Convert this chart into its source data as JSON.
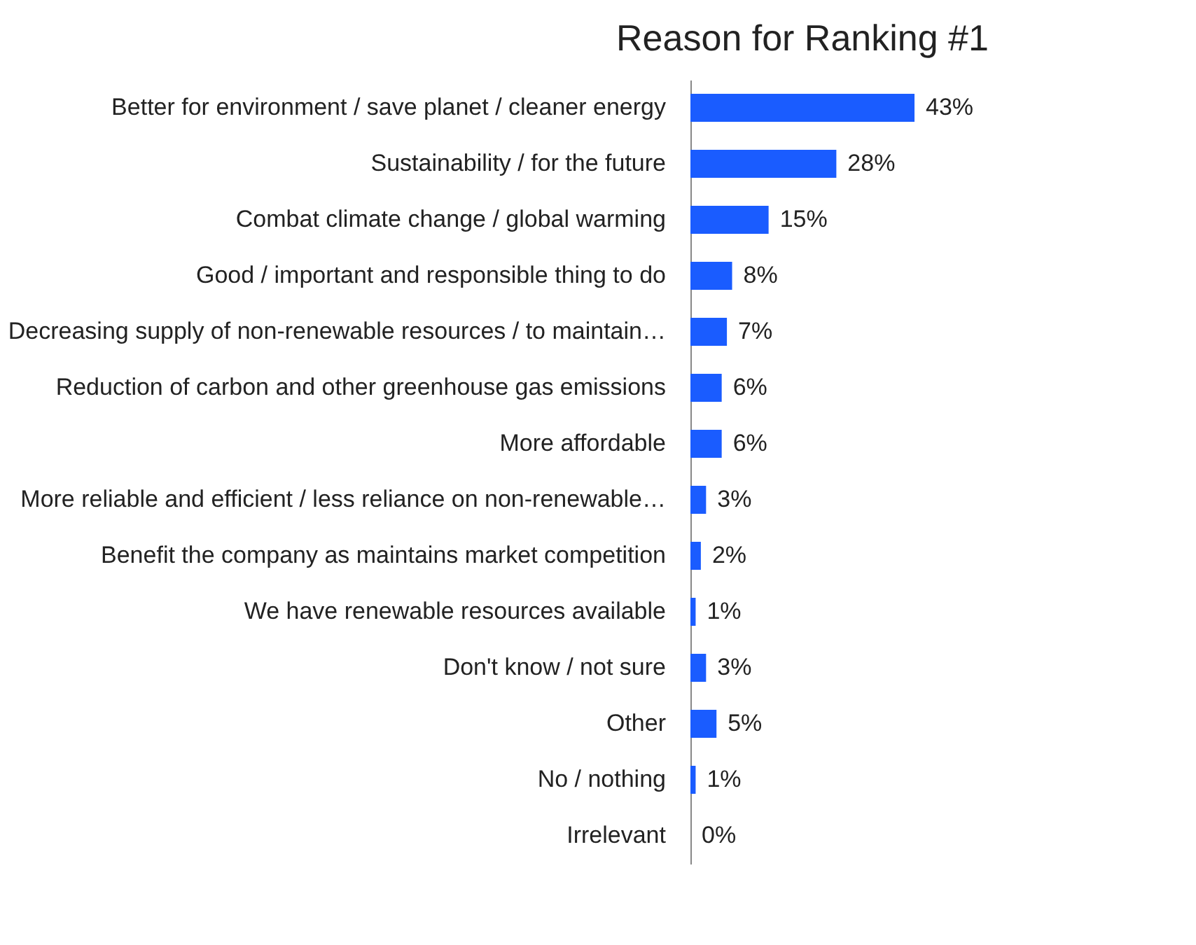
{
  "chart_data": {
    "type": "bar",
    "orientation": "horizontal",
    "title": "Reason for Ranking #1",
    "categories": [
      "Better for environment / save planet / cleaner energy",
      "Sustainability / for the future",
      "Combat climate change / global warming",
      "Good / important and responsible thing to do",
      "Decreasing supply of non-renewable resources / to maintain…",
      "Reduction of carbon and other greenhouse gas emissions",
      "More affordable",
      "More reliable and efficient / less reliance on non-renewable…",
      "Benefit the company as maintains market competition",
      "We have renewable resources available",
      "Don't know / not sure",
      "Other",
      "No / nothing",
      "Irrelevant"
    ],
    "values": [
      43,
      28,
      15,
      8,
      7,
      6,
      6,
      3,
      2,
      1,
      3,
      5,
      1,
      0
    ],
    "value_labels": [
      "43%",
      "28%",
      "15%",
      "8%",
      "7%",
      "6%",
      "6%",
      "3%",
      "2%",
      "1%",
      "3%",
      "5%",
      "1%",
      "0%"
    ],
    "color": "#1a5cff",
    "tick_labels": "y"
  }
}
